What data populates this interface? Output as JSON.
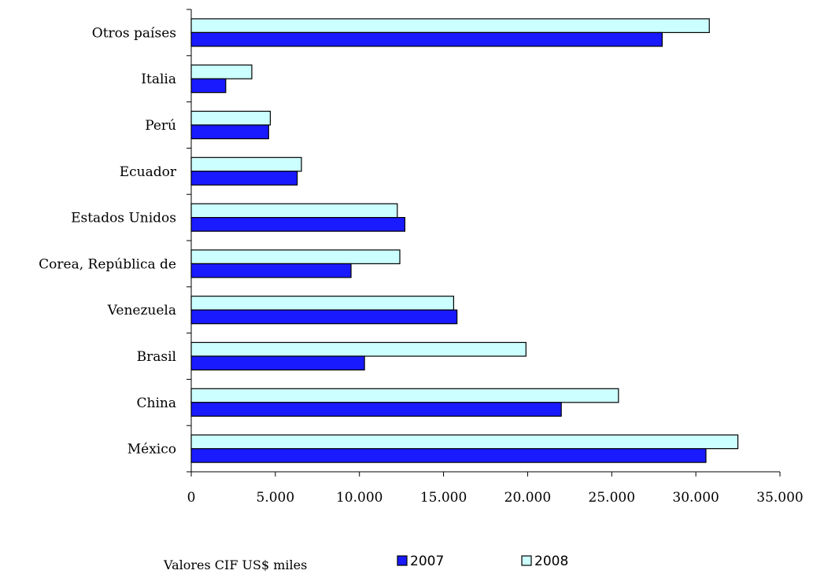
{
  "chart_data": {
    "type": "bar",
    "orientation": "horizontal",
    "categories": [
      "México",
      "China",
      "Brasil",
      "Venezuela",
      "Corea, República de",
      "Estados Unidos",
      "Ecuador",
      "Perú",
      "Italia",
      "Otros países"
    ],
    "series": [
      {
        "name": "2008",
        "color": "#ccffff",
        "values": [
          32500,
          25400,
          19900,
          15600,
          12400,
          12250,
          6550,
          4700,
          3600,
          30800
        ]
      },
      {
        "name": "2007",
        "color": "#1a1aff",
        "values": [
          30600,
          22000,
          10300,
          15800,
          9500,
          12700,
          6300,
          4600,
          2050,
          28000
        ]
      }
    ],
    "xlim": [
      0,
      35000
    ],
    "x_ticks": [
      0,
      5000,
      10000,
      15000,
      20000,
      25000,
      30000,
      35000
    ],
    "x_tick_labels": [
      "0",
      "5.000",
      "10.000",
      "15.000",
      "20.000",
      "25.000",
      "30.000",
      "35.000"
    ],
    "title": "",
    "xlabel": "",
    "ylabel": "",
    "grid": false,
    "legend_position": "bottom"
  },
  "footer": {
    "note": "Valores CIF US$ miles"
  },
  "legend": {
    "items": [
      {
        "label": "2007",
        "color": "#1a1aff"
      },
      {
        "label": "2008",
        "color": "#ccffff"
      }
    ]
  }
}
